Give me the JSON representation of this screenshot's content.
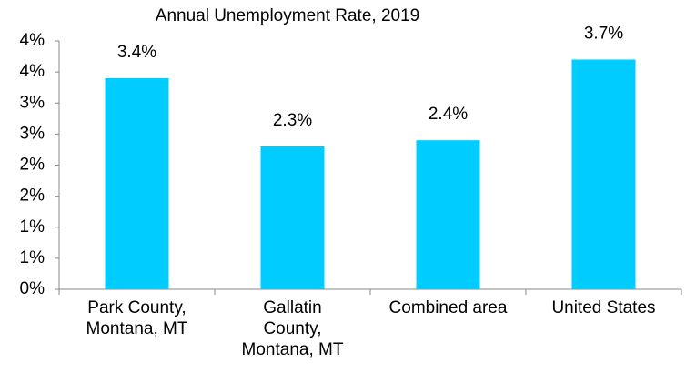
{
  "chart_data": {
    "type": "bar",
    "title": "Annual Unemployment Rate, 2019",
    "categories": [
      "Park County,\nMontana, MT",
      "Gallatin\nCounty,\nMontana, MT",
      "Combined area",
      "United States"
    ],
    "values": [
      3.4,
      2.3,
      2.4,
      3.7
    ],
    "value_labels": [
      "3.4%",
      "2.3%",
      "2.4%",
      "3.7%"
    ],
    "color": "#00ccff",
    "ylim": [
      0,
      4
    ],
    "yticks": [
      {
        "value": 0,
        "label": "0%"
      },
      {
        "value": 0.5,
        "label": "1%"
      },
      {
        "value": 1,
        "label": "1%"
      },
      {
        "value": 1.5,
        "label": "2%"
      },
      {
        "value": 2,
        "label": "2%"
      },
      {
        "value": 2.5,
        "label": "3%"
      },
      {
        "value": 3,
        "label": "3%"
      },
      {
        "value": 3.5,
        "label": "4%"
      },
      {
        "value": 4,
        "label": "4%"
      }
    ],
    "grid": false
  }
}
